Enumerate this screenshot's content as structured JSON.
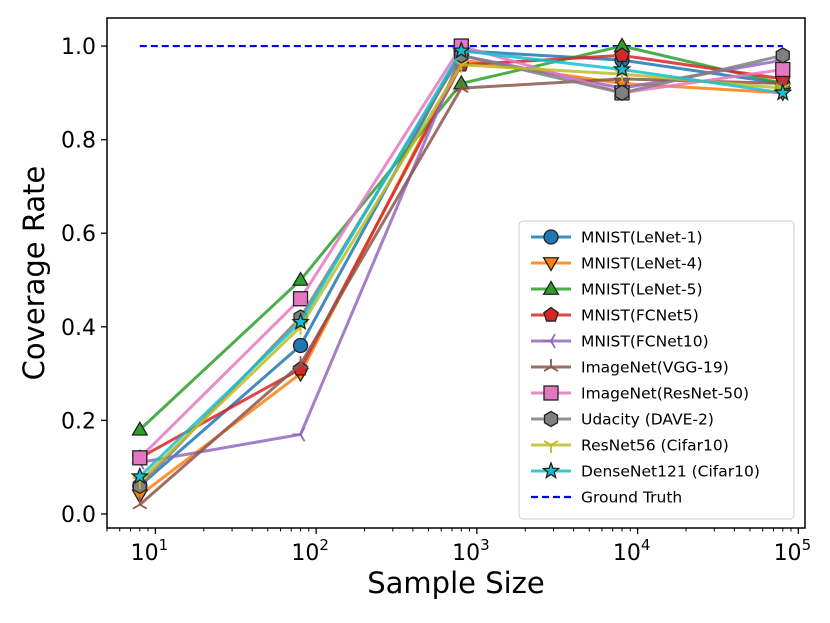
{
  "chart_data": {
    "type": "line",
    "title": "",
    "xlabel": "Sample Size",
    "ylabel": "Coverage Rate",
    "xscale": "log",
    "x": [
      8,
      80,
      800,
      8000,
      80000
    ],
    "xlim": [
      5,
      110000
    ],
    "ylim": [
      -0.03,
      1.06
    ],
    "x_tick_bases": [
      "10",
      "10",
      "10",
      "10",
      "10"
    ],
    "x_tick_exponents": [
      "1",
      "2",
      "3",
      "4",
      "5"
    ],
    "y_ticks": [
      "0.0",
      "0.2",
      "0.4",
      "0.6",
      "0.8",
      "1.0"
    ],
    "grid": false,
    "legend_position": "center-right",
    "series": [
      {
        "name": "MNIST(LeNet-1)",
        "color": "#1f77b4",
        "marker": "circle",
        "values": [
          0.06,
          0.36,
          0.99,
          0.97,
          0.92
        ]
      },
      {
        "name": "MNIST(LeNet-4)",
        "color": "#ff7f0e",
        "marker": "triangle-down",
        "values": [
          0.04,
          0.3,
          0.97,
          0.92,
          0.9
        ]
      },
      {
        "name": "MNIST(LeNet-5)",
        "color": "#2ca02c",
        "marker": "triangle-up",
        "values": [
          0.18,
          0.5,
          0.92,
          1.0,
          0.92
        ]
      },
      {
        "name": "MNIST(FCNet5)",
        "color": "#d62728",
        "marker": "pentagon",
        "values": [
          0.12,
          0.31,
          0.96,
          0.98,
          0.93
        ]
      },
      {
        "name": "MNIST(FCNet10)",
        "color": "#9467bd",
        "marker": "tri-left",
        "values": [
          0.11,
          0.17,
          0.98,
          0.91,
          0.97
        ]
      },
      {
        "name": "ImageNet(VGG-19)",
        "color": "#8c564b",
        "marker": "tri-up",
        "values": [
          0.02,
          0.32,
          0.91,
          0.93,
          0.92
        ]
      },
      {
        "name": "ImageNet(ResNet-50)",
        "color": "#e377c2",
        "marker": "square",
        "values": [
          0.12,
          0.46,
          1.0,
          0.9,
          0.95
        ]
      },
      {
        "name": "Udacity (DAVE-2)",
        "color": "#7f7f7f",
        "marker": "hexagon",
        "values": [
          0.06,
          0.42,
          0.98,
          0.9,
          0.98
        ]
      },
      {
        "name": "ResNet56 (Cifar10)",
        "color": "#bcbd22",
        "marker": "tri-down",
        "values": [
          0.07,
          0.4,
          0.96,
          0.94,
          0.91
        ]
      },
      {
        "name": "DenseNet121 (Cifar10)",
        "color": "#17becf",
        "marker": "star",
        "values": [
          0.08,
          0.41,
          0.99,
          0.95,
          0.9
        ]
      }
    ],
    "reference_line": {
      "name": "Ground Truth",
      "color": "#0000ee",
      "style": "dashed",
      "value": 1.0
    }
  }
}
